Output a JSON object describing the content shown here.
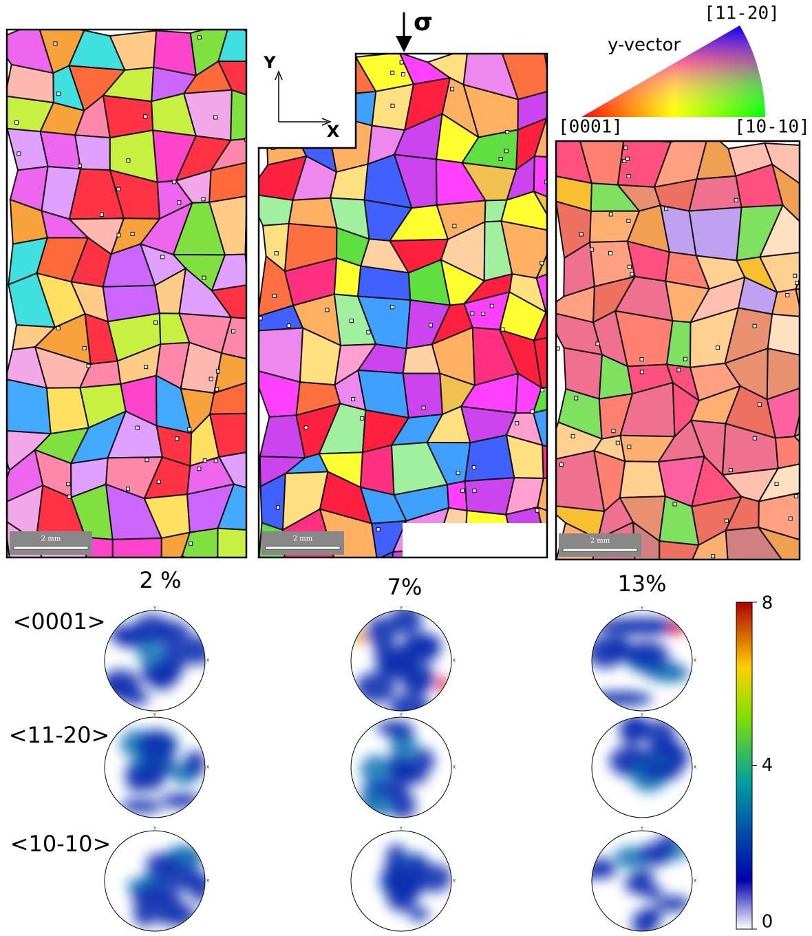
{
  "figure": {
    "sigma": "σ",
    "axes": {
      "y": "Y",
      "x": "X"
    },
    "ipf": {
      "title": "y-vector",
      "top": "[11-20]",
      "left": "[0001]",
      "right": "[10-10]"
    },
    "maps": [
      {
        "strain": "2 %",
        "scale_bar": "2 mm"
      },
      {
        "strain": "7%",
        "scale_bar": "2 mm"
      },
      {
        "strain": "13%",
        "scale_bar": "2 mm"
      }
    ],
    "pole_figures": {
      "rows": [
        "<0001>",
        "<11-20>",
        "<10-10>"
      ],
      "x_label": "X",
      "y_label": "Y"
    },
    "colorbar": {
      "lim": [
        0,
        8
      ],
      "ticks": [
        0,
        4,
        8
      ]
    }
  }
}
